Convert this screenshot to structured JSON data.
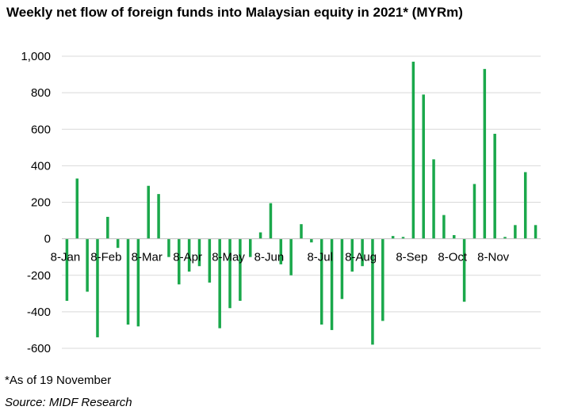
{
  "title": "Weekly net flow of foreign funds into Malaysian equity in 2021* (MYRm)",
  "note": "*As of 19 November",
  "source": "Source: MIDF Research",
  "chart_data": {
    "type": "bar",
    "title": "Weekly net flow of foreign funds into Malaysian equity in 2021* (MYRm)",
    "xlabel": "",
    "ylabel": "",
    "ylim": [
      -600,
      1000
    ],
    "yticks": [
      1000,
      800,
      600,
      400,
      200,
      0,
      -200,
      -400,
      -600
    ],
    "ytick_labels": [
      "1,000",
      "800",
      "600",
      "400",
      "200",
      "0",
      "-200",
      "-400",
      "-600"
    ],
    "xtick_labels": [
      "8-Jan",
      "8-Feb",
      "8-Mar",
      "8-Apr",
      "8-May",
      "8-Jun",
      "8-Jul",
      "8-Aug",
      "8-Sep",
      "8-Oct",
      "8-Nov"
    ],
    "xtick_weeks": [
      1,
      5,
      9,
      13,
      17,
      21,
      26,
      30,
      35,
      39,
      43
    ],
    "grid": true,
    "bar_color": "#1aa84b",
    "grid_color": "#d9d9d9",
    "weeks": [
      1,
      2,
      3,
      4,
      5,
      6,
      7,
      8,
      9,
      10,
      11,
      12,
      13,
      14,
      15,
      16,
      17,
      18,
      19,
      20,
      21,
      22,
      23,
      24,
      25,
      26,
      27,
      28,
      29,
      30,
      31,
      32,
      33,
      34,
      35,
      36,
      37,
      38,
      39,
      40,
      41,
      42,
      43,
      44,
      45,
      46,
      47
    ],
    "values": [
      -340,
      330,
      -290,
      -540,
      120,
      -50,
      -470,
      -480,
      290,
      245,
      -100,
      -250,
      -180,
      -150,
      -240,
      -490,
      -380,
      -340,
      -100,
      35,
      195,
      -140,
      -200,
      80,
      -20,
      -470,
      -500,
      -330,
      -180,
      -150,
      -580,
      -450,
      15,
      10,
      970,
      790,
      435,
      130,
      20,
      -345,
      300,
      930,
      575,
      10,
      75,
      365,
      75
    ]
  }
}
